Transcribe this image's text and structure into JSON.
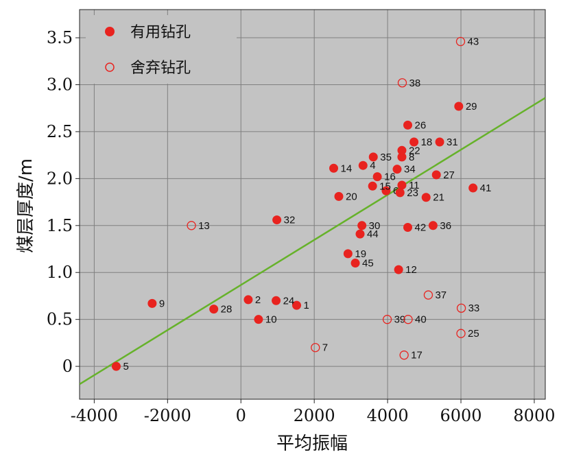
{
  "chart_data": {
    "type": "scatter",
    "xlabel": "平均振幅",
    "ylabel": "煤层厚度/m",
    "xlim": [
      -4400,
      8300
    ],
    "ylim": [
      -0.35,
      3.8
    ],
    "xticks": [
      -4000,
      -2000,
      0,
      2000,
      4000,
      6000,
      8000
    ],
    "xtick_labels": [
      "-4000",
      "-2000",
      "0",
      "2000",
      "4000",
      "6000",
      "8000"
    ],
    "yticks": [
      0,
      0.5,
      1.0,
      1.5,
      2.0,
      2.5,
      3.0,
      3.5
    ],
    "ytick_labels": [
      "0",
      "0.5",
      "1.0",
      "1.5",
      "2.0",
      "2.5",
      "3.0",
      "3.5"
    ],
    "grid": true,
    "legend_position": "top-left",
    "colors": {
      "background": "#c3c3c3",
      "grid": "#7f7f7f",
      "point": "#e8231f",
      "fit_line": "#66b22a"
    },
    "series": [
      {
        "name": "有用钻孔",
        "marker": "filled",
        "points": [
          {
            "id": "1",
            "x": 1520,
            "y": 0.65
          },
          {
            "id": "2",
            "x": 200,
            "y": 0.71
          },
          {
            "id": "4",
            "x": 3330,
            "y": 2.14
          },
          {
            "id": "5",
            "x": -3400,
            "y": 0.0
          },
          {
            "id": "6",
            "x": 3960,
            "y": 1.87
          },
          {
            "id": "8",
            "x": 4390,
            "y": 2.23
          },
          {
            "id": "9",
            "x": -2420,
            "y": 0.67
          },
          {
            "id": "10",
            "x": 480,
            "y": 0.5
          },
          {
            "id": "11",
            "x": 4390,
            "y": 1.93
          },
          {
            "id": "12",
            "x": 4300,
            "y": 1.03
          },
          {
            "id": "14",
            "x": 2530,
            "y": 2.11
          },
          {
            "id": "15",
            "x": 3590,
            "y": 1.92
          },
          {
            "id": "16",
            "x": 3720,
            "y": 2.02
          },
          {
            "id": "18",
            "x": 4720,
            "y": 2.39
          },
          {
            "id": "19",
            "x": 2920,
            "y": 1.2
          },
          {
            "id": "20",
            "x": 2670,
            "y": 1.81
          },
          {
            "id": "21",
            "x": 5050,
            "y": 1.8
          },
          {
            "id": "22",
            "x": 4390,
            "y": 2.3
          },
          {
            "id": "23",
            "x": 4340,
            "y": 1.85
          },
          {
            "id": "24",
            "x": 960,
            "y": 0.7
          },
          {
            "id": "26",
            "x": 4550,
            "y": 2.57
          },
          {
            "id": "27",
            "x": 5330,
            "y": 2.04
          },
          {
            "id": "28",
            "x": -740,
            "y": 0.61
          },
          {
            "id": "29",
            "x": 5940,
            "y": 2.77
          },
          {
            "id": "30",
            "x": 3300,
            "y": 1.5
          },
          {
            "id": "31",
            "x": 5420,
            "y": 2.39
          },
          {
            "id": "32",
            "x": 980,
            "y": 1.56
          },
          {
            "id": "34",
            "x": 4260,
            "y": 2.1
          },
          {
            "id": "35",
            "x": 3610,
            "y": 2.23
          },
          {
            "id": "36",
            "x": 5240,
            "y": 1.5
          },
          {
            "id": "41",
            "x": 6330,
            "y": 1.9
          },
          {
            "id": "42",
            "x": 4550,
            "y": 1.48
          },
          {
            "id": "44",
            "x": 3250,
            "y": 1.41
          },
          {
            "id": "45",
            "x": 3120,
            "y": 1.1
          }
        ]
      },
      {
        "name": "舍弃钻孔",
        "marker": "open",
        "points": [
          {
            "id": "7",
            "x": 2030,
            "y": 0.2
          },
          {
            "id": "13",
            "x": -1350,
            "y": 1.5
          },
          {
            "id": "17",
            "x": 4450,
            "y": 0.12
          },
          {
            "id": "25",
            "x": 6000,
            "y": 0.35
          },
          {
            "id": "33",
            "x": 6010,
            "y": 0.62
          },
          {
            "id": "37",
            "x": 5110,
            "y": 0.76
          },
          {
            "id": "38",
            "x": 4400,
            "y": 3.02
          },
          {
            "id": "39",
            "x": 3990,
            "y": 0.5
          },
          {
            "id": "40",
            "x": 4560,
            "y": 0.5
          },
          {
            "id": "43",
            "x": 5990,
            "y": 3.46
          }
        ]
      }
    ],
    "fit_line": {
      "x": [
        -4400,
        8300
      ],
      "y": [
        -0.19,
        2.86
      ]
    }
  }
}
